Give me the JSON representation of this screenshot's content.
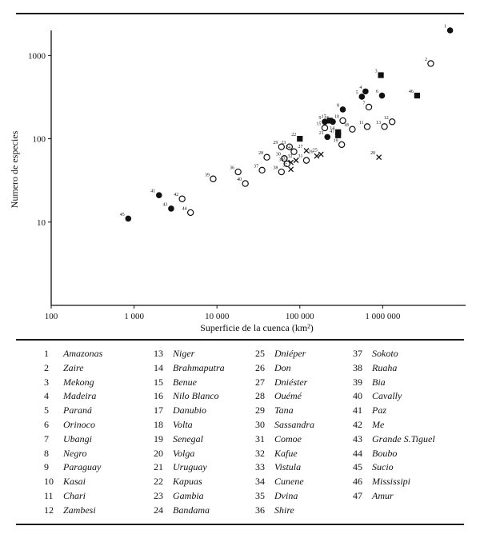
{
  "chart_data": {
    "type": "scatter",
    "xlabel": "Superficie de la cuenca (km²)",
    "ylabel": "Numero de especies",
    "x_scale": "log",
    "y_scale": "log",
    "xlim": [
      100,
      10000000
    ],
    "ylim": [
      1,
      2000
    ],
    "x_ticks": [
      {
        "value": 100,
        "label": "100"
      },
      {
        "value": 1000,
        "label": "1 000"
      },
      {
        "value": 10000,
        "label": "10 000"
      },
      {
        "value": 100000,
        "label": "100 000"
      },
      {
        "value": 1000000,
        "label": "1 000 000"
      }
    ],
    "y_ticks": [
      {
        "value": 10,
        "label": "10"
      },
      {
        "value": 100,
        "label": "100"
      },
      {
        "value": 1000,
        "label": "1000"
      }
    ],
    "points": [
      {
        "n": "1",
        "x": 6500000,
        "y": 2000,
        "m": "disc"
      },
      {
        "n": "2",
        "x": 3800000,
        "y": 800,
        "m": "circle"
      },
      {
        "n": "3",
        "x": 950000,
        "y": 580,
        "m": "square"
      },
      {
        "n": "4",
        "x": 620000,
        "y": 370,
        "m": "disc"
      },
      {
        "n": "5",
        "x": 560000,
        "y": 320,
        "m": "disc"
      },
      {
        "n": "6",
        "x": 980000,
        "y": 330,
        "m": "disc"
      },
      {
        "n": "7",
        "x": 680000,
        "y": 240,
        "m": "circle"
      },
      {
        "n": "8",
        "x": 330000,
        "y": 225,
        "m": "disc"
      },
      {
        "n": "9",
        "x": 200000,
        "y": 160,
        "m": "disc"
      },
      {
        "n": "10",
        "x": 330000,
        "y": 165,
        "m": "circle"
      },
      {
        "n": "11",
        "x": 650000,
        "y": 140,
        "m": "circle"
      },
      {
        "n": "12",
        "x": 1300000,
        "y": 160,
        "m": "circle"
      },
      {
        "n": "13",
        "x": 1050000,
        "y": 140,
        "m": "circle"
      },
      {
        "n": "14",
        "x": 290000,
        "y": 120,
        "m": "square"
      },
      {
        "n": "15",
        "x": 200000,
        "y": 135,
        "m": "circle"
      },
      {
        "n": "16",
        "x": 250000,
        "y": 160,
        "m": "disc"
      },
      {
        "n": "17",
        "x": 230000,
        "y": 165,
        "m": "square"
      },
      {
        "n": "18",
        "x": 430000,
        "y": 130,
        "m": "circle"
      },
      {
        "n": "19",
        "x": 320000,
        "y": 85,
        "m": "circle"
      },
      {
        "n": "20",
        "x": 900000,
        "y": 60,
        "m": "cross"
      },
      {
        "n": "21",
        "x": 215000,
        "y": 105,
        "m": "disc"
      },
      {
        "n": "22",
        "x": 100000,
        "y": 100,
        "m": "square"
      },
      {
        "n": "23",
        "x": 75000,
        "y": 80,
        "m": "circle"
      },
      {
        "n": "24",
        "x": 85000,
        "y": 70,
        "m": "circle"
      },
      {
        "n": "25",
        "x": 180000,
        "y": 65,
        "m": "cross"
      },
      {
        "n": "26",
        "x": 160000,
        "y": 62,
        "m": "cross"
      },
      {
        "n": "27",
        "x": 120000,
        "y": 72,
        "m": "cross"
      },
      {
        "n": "28",
        "x": 40000,
        "y": 60,
        "m": "circle"
      },
      {
        "n": "29",
        "x": 60000,
        "y": 80,
        "m": "circle"
      },
      {
        "n": "30",
        "x": 65000,
        "y": 58,
        "m": "circle"
      },
      {
        "n": "31",
        "x": 120000,
        "y": 55,
        "m": "circle"
      },
      {
        "n": "32",
        "x": 90000,
        "y": 55,
        "m": "cross"
      },
      {
        "n": "33",
        "x": 78000,
        "y": 52,
        "m": "cross"
      },
      {
        "n": "34",
        "x": 70000,
        "y": 50,
        "m": "circle"
      },
      {
        "n": "35",
        "x": 78000,
        "y": 43,
        "m": "cross"
      },
      {
        "n": "36",
        "x": 18000,
        "y": 40,
        "m": "circle"
      },
      {
        "n": "37",
        "x": 35000,
        "y": 42,
        "m": "circle"
      },
      {
        "n": "38",
        "x": 60000,
        "y": 40,
        "m": "circle"
      },
      {
        "n": "39",
        "x": 9000,
        "y": 33,
        "m": "circle"
      },
      {
        "n": "40",
        "x": 22000,
        "y": 29,
        "m": "circle"
      },
      {
        "n": "41",
        "x": 2000,
        "y": 21,
        "m": "disc"
      },
      {
        "n": "42",
        "x": 3800,
        "y": 19,
        "m": "circle"
      },
      {
        "n": "43",
        "x": 2800,
        "y": 14.5,
        "m": "disc"
      },
      {
        "n": "44",
        "x": 4800,
        "y": 13,
        "m": "circle"
      },
      {
        "n": "45",
        "x": 850,
        "y": 11,
        "m": "disc"
      },
      {
        "n": "46",
        "x": 2600000,
        "y": 330,
        "m": "square"
      },
      {
        "n": "47",
        "x": 290000,
        "y": 110,
        "m": "square"
      }
    ]
  },
  "legend": [
    [
      {
        "num": "1",
        "name": "Amazonas"
      },
      {
        "num": "2",
        "name": "Zaire"
      },
      {
        "num": "3",
        "name": "Mekong"
      },
      {
        "num": "4",
        "name": "Madeira"
      },
      {
        "num": "5",
        "name": "Paraná"
      },
      {
        "num": "6",
        "name": "Orinoco"
      },
      {
        "num": "7",
        "name": "Ubangi"
      },
      {
        "num": "8",
        "name": "Negro"
      },
      {
        "num": "9",
        "name": "Paraguay"
      },
      {
        "num": "10",
        "name": "Kasai"
      },
      {
        "num": "11",
        "name": "Chari"
      },
      {
        "num": "12",
        "name": "Zambesi"
      }
    ],
    [
      {
        "num": "13",
        "name": "Niger"
      },
      {
        "num": "14",
        "name": "Brahmaputra"
      },
      {
        "num": "15",
        "name": "Benue"
      },
      {
        "num": "16",
        "name": "Nilo Blanco"
      },
      {
        "num": "17",
        "name": "Danubio"
      },
      {
        "num": "18",
        "name": "Volta"
      },
      {
        "num": "19",
        "name": "Senegal"
      },
      {
        "num": "20",
        "name": "Volga"
      },
      {
        "num": "21",
        "name": "Uruguay"
      },
      {
        "num": "22",
        "name": "Kapuas"
      },
      {
        "num": "23",
        "name": "Gambia"
      },
      {
        "num": "24",
        "name": "Bandama"
      }
    ],
    [
      {
        "num": "25",
        "name": "Dniéper"
      },
      {
        "num": "26",
        "name": "Don"
      },
      {
        "num": "27",
        "name": "Dniéster"
      },
      {
        "num": "28",
        "name": "Ouémé"
      },
      {
        "num": "29",
        "name": "Tana"
      },
      {
        "num": "30",
        "name": "Sassandra"
      },
      {
        "num": "31",
        "name": "Comoe"
      },
      {
        "num": "32",
        "name": "Kafue"
      },
      {
        "num": "33",
        "name": "Vistula"
      },
      {
        "num": "34",
        "name": "Cunene"
      },
      {
        "num": "35",
        "name": "Dvina"
      },
      {
        "num": "36",
        "name": "Shire"
      }
    ],
    [
      {
        "num": "37",
        "name": "Sokoto"
      },
      {
        "num": "38",
        "name": "Ruaha"
      },
      {
        "num": "39",
        "name": "Bia"
      },
      {
        "num": "40",
        "name": "Cavally"
      },
      {
        "num": "41",
        "name": "Paz"
      },
      {
        "num": "42",
        "name": "Me"
      },
      {
        "num": "43",
        "name": "Grande S.Tiguel"
      },
      {
        "num": "44",
        "name": "Boubo"
      },
      {
        "num": "45",
        "name": "Sucio"
      },
      {
        "num": "46",
        "name": "Mississipi"
      },
      {
        "num": "47",
        "name": "Amur"
      }
    ]
  ]
}
